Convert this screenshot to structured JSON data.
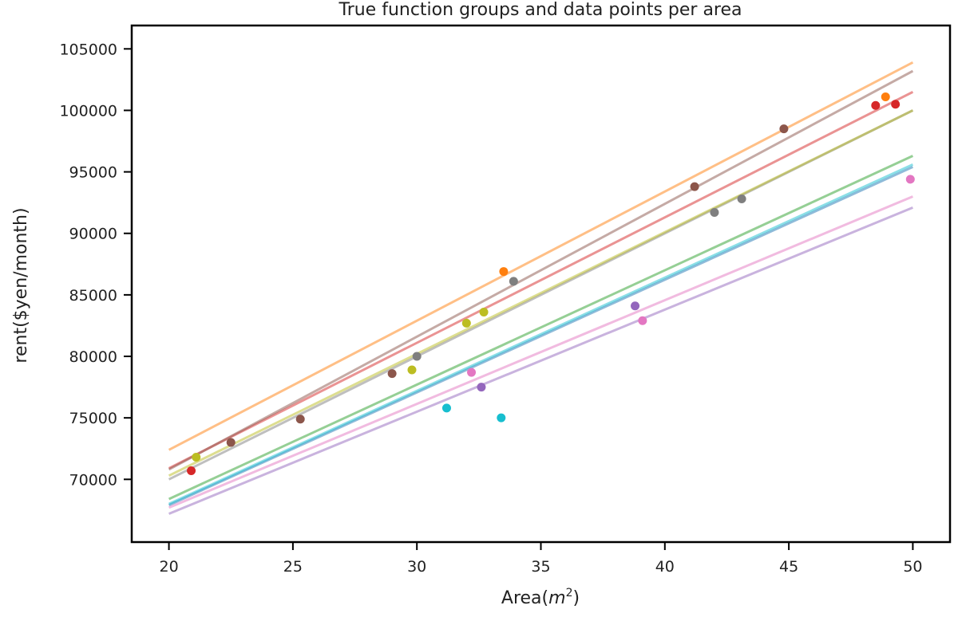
{
  "chart_data": {
    "type": "scatter",
    "title": "True function groups and data points per area",
    "xlabel_text": "Area(",
    "xlabel_math_base": "m",
    "xlabel_math_sup": "2",
    "xlabel_close": ")",
    "ylabel": "rent($yen/month)",
    "xlim": [
      18.5,
      51.5
    ],
    "ylim": [
      64900,
      106900
    ],
    "x_ticks": [
      20,
      25,
      30,
      35,
      40,
      45,
      50
    ],
    "y_ticks": [
      70000,
      75000,
      80000,
      85000,
      90000,
      95000,
      100000,
      105000
    ],
    "grid": false,
    "legend": "none",
    "series": [
      {
        "color": "#1f77b4",
        "line": [
          [
            20,
            67900
          ],
          [
            50,
            95400
          ]
        ],
        "points": []
      },
      {
        "color": "#ff7f0e",
        "line": [
          [
            20,
            72400
          ],
          [
            50,
            103900
          ]
        ],
        "points": [
          [
            33.5,
            86900
          ],
          [
            48.9,
            101100
          ]
        ]
      },
      {
        "color": "#2ca02c",
        "line": [
          [
            20,
            68400
          ],
          [
            50,
            96300
          ]
        ],
        "points": []
      },
      {
        "color": "#d62728",
        "line": [
          [
            20,
            70900
          ],
          [
            50,
            101500
          ]
        ],
        "points": [
          [
            20.9,
            70700
          ],
          [
            48.5,
            100400
          ],
          [
            49.3,
            100500
          ]
        ]
      },
      {
        "color": "#9467bd",
        "line": [
          [
            20,
            67200
          ],
          [
            50,
            92100
          ]
        ],
        "points": [
          [
            32.6,
            77500
          ],
          [
            38.8,
            84100
          ]
        ]
      },
      {
        "color": "#8c564b",
        "line": [
          [
            20,
            70800
          ],
          [
            50,
            103200
          ]
        ],
        "points": [
          [
            22.5,
            73000
          ],
          [
            25.3,
            74900
          ],
          [
            29.0,
            78600
          ],
          [
            41.2,
            93800
          ],
          [
            44.8,
            98500
          ]
        ]
      },
      {
        "color": "#e377c2",
        "line": [
          [
            20,
            67700
          ],
          [
            50,
            93000
          ]
        ],
        "points": [
          [
            32.2,
            78700
          ],
          [
            39.1,
            82900
          ],
          [
            49.9,
            94400
          ]
        ]
      },
      {
        "color": "#7f7f7f",
        "line": [
          [
            20,
            70000
          ],
          [
            50,
            100000
          ]
        ],
        "points": [
          [
            30.0,
            80000
          ],
          [
            33.9,
            86100
          ],
          [
            42.0,
            91700
          ],
          [
            43.1,
            92800
          ]
        ]
      },
      {
        "color": "#bcbd22",
        "line": [
          [
            20,
            70300
          ],
          [
            50,
            100000
          ]
        ],
        "points": [
          [
            21.1,
            71800
          ],
          [
            29.8,
            78900
          ],
          [
            32.7,
            83600
          ],
          [
            32.0,
            82700
          ]
        ]
      },
      {
        "color": "#17becf",
        "line": [
          [
            20,
            68000
          ],
          [
            50,
            95600
          ]
        ],
        "points": [
          [
            31.2,
            75800
          ],
          [
            33.4,
            75000
          ]
        ]
      }
    ]
  }
}
